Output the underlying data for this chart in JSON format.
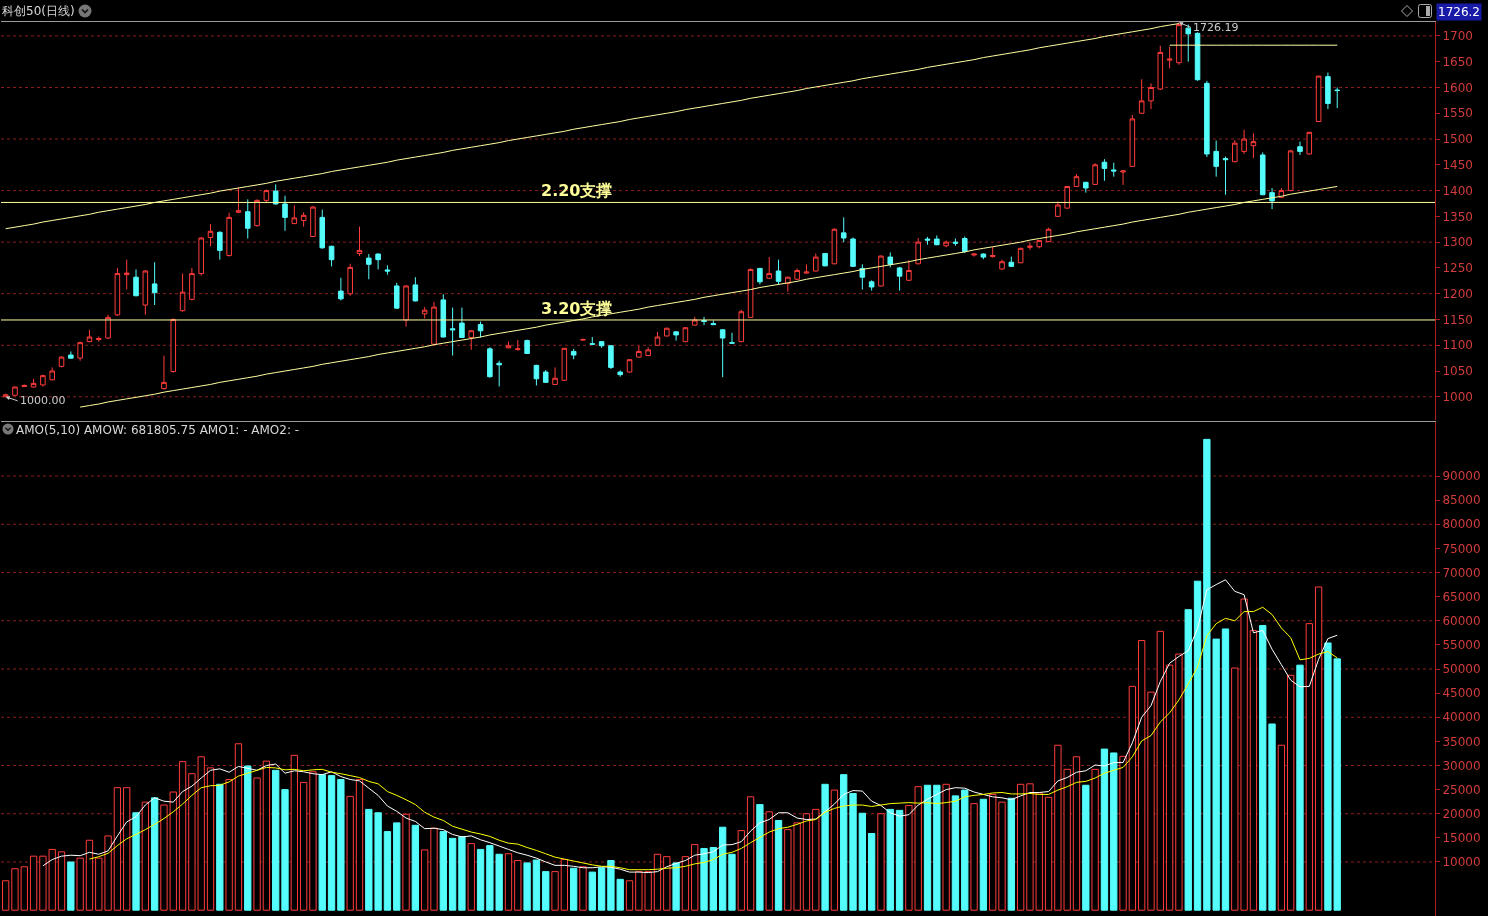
{
  "chart_data": [
    {
      "type": "candlestick",
      "title": "科创50(日线)",
      "categories": [
        null,
        null,
        null,
        null,
        null,
        null,
        null,
        null,
        null,
        null,
        null,
        null,
        null,
        null,
        null,
        null,
        null,
        null,
        null,
        null,
        null,
        null,
        null,
        null,
        null,
        null,
        null,
        null,
        null,
        null,
        null,
        null,
        null,
        null,
        null,
        null,
        null,
        null,
        null,
        null,
        null,
        null,
        null,
        null,
        null,
        null,
        null,
        null,
        null,
        null,
        null,
        null,
        null,
        null,
        null,
        null,
        null,
        null,
        null,
        null,
        null,
        null,
        null,
        null,
        null,
        null,
        null,
        null,
        null,
        null,
        null,
        null,
        null,
        null,
        null,
        null,
        null,
        null,
        null,
        null,
        null,
        null,
        null,
        null,
        null,
        null,
        null,
        null,
        null,
        null,
        null,
        null,
        null,
        null,
        null,
        null,
        null,
        null,
        null,
        null,
        null,
        null,
        null,
        null,
        null,
        null,
        null,
        null,
        null,
        null,
        null,
        null,
        null,
        null,
        null,
        null,
        null,
        null,
        null,
        null,
        null,
        null,
        null,
        null,
        null,
        null,
        null,
        null,
        null,
        null,
        null,
        null,
        null,
        null,
        null,
        null,
        null,
        null,
        null,
        null,
        null,
        null,
        null,
        null
      ],
      "ohlc": [
        [
          1000,
          1006,
          1000,
          1004
        ],
        [
          1003,
          1020,
          1002,
          1019
        ],
        [
          1020,
          1024,
          1019,
          1022
        ],
        [
          1019,
          1035,
          1018,
          1026
        ],
        [
          1023,
          1043,
          1020,
          1041
        ],
        [
          1033,
          1057,
          1032,
          1050
        ],
        [
          1059,
          1079,
          1057,
          1077
        ],
        [
          1081,
          1088,
          1074,
          1075
        ],
        [
          1075,
          1107,
          1070,
          1105
        ],
        [
          1107,
          1130,
          1106,
          1116
        ],
        [
          1111,
          1117,
          1107,
          1113
        ],
        [
          1114,
          1159,
          1112,
          1154
        ],
        [
          1159,
          1250,
          1157,
          1239
        ],
        [
          1237,
          1266,
          1208,
          1240
        ],
        [
          1232,
          1247,
          1195,
          1196
        ],
        [
          1178,
          1246,
          1159,
          1244
        ],
        [
          1219,
          1261,
          1178,
          1202
        ],
        [
          1016,
          1080,
          1014,
          1028
        ],
        [
          1049,
          1152,
          1047,
          1150
        ],
        [
          1167,
          1239,
          1165,
          1203
        ],
        [
          1189,
          1250,
          1187,
          1239
        ],
        [
          1239,
          1310,
          1235,
          1308
        ],
        [
          1309,
          1335,
          1292,
          1321
        ],
        [
          1319,
          1321,
          1266,
          1284
        ],
        [
          1274,
          1357,
          1272,
          1348
        ],
        [
          1358,
          1406,
          1356,
          1361
        ],
        [
          1359,
          1383,
          1307,
          1327
        ],
        [
          1332,
          1383,
          1330,
          1381
        ],
        [
          1381,
          1402,
          1376,
          1400
        ],
        [
          1399,
          1412,
          1373,
          1374
        ],
        [
          1374,
          1390,
          1322,
          1348
        ],
        [
          1336,
          1371,
          1335,
          1347
        ],
        [
          1342,
          1358,
          1330,
          1352
        ],
        [
          1311,
          1370,
          1310,
          1368
        ],
        [
          1348,
          1363,
          1287,
          1289
        ],
        [
          1292,
          1293,
          1253,
          1266
        ],
        [
          1205,
          1231,
          1187,
          1190
        ],
        [
          1200,
          1258,
          1196,
          1251
        ],
        [
          1278,
          1330,
          1273,
          1284
        ],
        [
          1269,
          1277,
          1228,
          1257
        ],
        [
          1277,
          1278,
          1247,
          1266
        ],
        [
          1246,
          1255,
          1237,
          1244
        ],
        [
          1215,
          1221,
          1171,
          1172
        ],
        [
          1149,
          1216,
          1136,
          1215
        ],
        [
          1217,
          1232,
          1185,
          1186
        ],
        [
          1161,
          1174,
          1152,
          1168
        ],
        [
          1102,
          1184,
          1100,
          1174
        ],
        [
          1188,
          1199,
          1115,
          1116
        ],
        [
          1132,
          1173,
          1080,
          1130
        ],
        [
          1143,
          1173,
          1114,
          1115
        ],
        [
          1115,
          1130,
          1091,
          1128
        ],
        [
          1140,
          1146,
          1115,
          1128
        ],
        [
          1093,
          1096,
          1037,
          1039
        ],
        [
          1065,
          1070,
          1020,
          1062
        ],
        [
          1095,
          1107,
          1094,
          1099
        ],
        [
          1092,
          1110,
          1089,
          1093
        ],
        [
          1109,
          1111,
          1083,
          1084
        ],
        [
          1061,
          1062,
          1022,
          1035
        ],
        [
          1048,
          1052,
          1027,
          1028
        ],
        [
          1024,
          1057,
          1023,
          1036
        ],
        [
          1032,
          1095,
          1031,
          1094
        ],
        [
          1088,
          1093,
          1073,
          1081
        ],
        [
          1110,
          1113,
          1109,
          1111
        ],
        [
          1103,
          1116,
          1100,
          1102
        ],
        [
          1107,
          1108,
          1095,
          1099
        ],
        [
          1099,
          1100,
          1054,
          1057
        ],
        [
          1048,
          1051,
          1039,
          1043
        ],
        [
          1048,
          1073,
          1047,
          1072
        ],
        [
          1077,
          1099,
          1076,
          1088
        ],
        [
          1080,
          1096,
          1079,
          1091
        ],
        [
          1100,
          1126,
          1099,
          1116
        ],
        [
          1118,
          1134,
          1117,
          1133
        ],
        [
          1126,
          1127,
          1109,
          1120
        ],
        [
          1107,
          1135,
          1106,
          1134
        ],
        [
          1139,
          1155,
          1138,
          1149
        ],
        [
          1148,
          1155,
          1139,
          1146
        ],
        [
          1142,
          1148,
          1139,
          1140
        ],
        [
          1130,
          1131,
          1038,
          1114
        ],
        [
          1105,
          1124,
          1103,
          1104
        ],
        [
          1107,
          1169,
          1106,
          1165
        ],
        [
          1154,
          1249,
          1153,
          1247
        ],
        [
          1249,
          1250,
          1218,
          1223
        ],
        [
          1230,
          1271,
          1229,
          1239
        ],
        [
          1244,
          1266,
          1217,
          1224
        ],
        [
          1220,
          1233,
          1204,
          1232
        ],
        [
          1228,
          1249,
          1227,
          1245
        ],
        [
          1240,
          1257,
          1239,
          1242
        ],
        [
          1244,
          1278,
          1243,
          1271
        ],
        [
          1278,
          1279,
          1253,
          1254
        ],
        [
          1258,
          1327,
          1257,
          1325
        ],
        [
          1318,
          1348,
          1300,
          1308
        ],
        [
          1306,
          1309,
          1252,
          1253
        ],
        [
          1249,
          1257,
          1208,
          1232
        ],
        [
          1223,
          1226,
          1206,
          1213
        ],
        [
          1215,
          1274,
          1214,
          1273
        ],
        [
          1271,
          1280,
          1251,
          1257
        ],
        [
          1250,
          1252,
          1206,
          1234
        ],
        [
          1226,
          1265,
          1225,
          1245
        ],
        [
          1258,
          1308,
          1257,
          1300
        ],
        [
          1306,
          1310,
          1295,
          1304
        ],
        [
          1306,
          1313,
          1294,
          1295
        ],
        [
          1293,
          1303,
          1290,
          1300
        ],
        [
          1300,
          1307,
          1293,
          1298
        ],
        [
          1307,
          1311,
          1279,
          1282
        ],
        [
          1275,
          1278,
          1272,
          1277
        ],
        [
          1277,
          1278,
          1267,
          1271
        ],
        [
          1272,
          1291,
          1270,
          1274
        ],
        [
          1248,
          1266,
          1246,
          1262
        ],
        [
          1261,
          1272,
          1252,
          1253
        ],
        [
          1260,
          1289,
          1259,
          1288
        ],
        [
          1290,
          1299,
          1285,
          1292
        ],
        [
          1291,
          1304,
          1288,
          1303
        ],
        [
          1301,
          1328,
          1300,
          1325
        ],
        [
          1350,
          1379,
          1349,
          1372
        ],
        [
          1366,
          1409,
          1365,
          1408
        ],
        [
          1408,
          1432,
          1407,
          1427
        ],
        [
          1416,
          1417,
          1396,
          1405
        ],
        [
          1412,
          1453,
          1411,
          1450
        ],
        [
          1455,
          1461,
          1419,
          1443
        ],
        [
          1440,
          1454,
          1427,
          1438
        ],
        [
          1436,
          1440,
          1411,
          1438
        ],
        [
          1447,
          1547,
          1446,
          1539
        ],
        [
          1550,
          1616,
          1549,
          1574
        ],
        [
          1574,
          1608,
          1558,
          1600
        ],
        [
          1597,
          1681,
          1595,
          1668
        ],
        [
          1653,
          1679,
          1637,
          1655
        ],
        [
          1648,
          1726.19,
          1644,
          1722
        ],
        [
          1715,
          1722,
          1650,
          1704
        ],
        [
          1705,
          1707,
          1613,
          1615
        ],
        [
          1608,
          1613,
          1465,
          1471
        ],
        [
          1476,
          1497,
          1427,
          1447
        ],
        [
          1462,
          1466,
          1392,
          1460
        ],
        [
          1456,
          1498,
          1455,
          1492
        ],
        [
          1476,
          1518,
          1471,
          1500
        ],
        [
          1487,
          1511,
          1463,
          1495
        ],
        [
          1469,
          1474,
          1391,
          1392
        ],
        [
          1396,
          1405,
          1364,
          1380
        ],
        [
          1387,
          1405,
          1386,
          1400
        ],
        [
          1400,
          1479,
          1399,
          1477
        ],
        [
          1485,
          1495,
          1469,
          1476
        ],
        [
          1471,
          1514,
          1470,
          1513
        ],
        [
          1534,
          1623,
          1533,
          1622
        ],
        [
          1621,
          1629,
          1558,
          1569
        ],
        [
          1595,
          1600,
          1560,
          1594
        ]
      ],
      "series": [
        {
          "type": "line",
          "color": "#ffffa0",
          "values": [
            1326,
            1329,
            1332,
            1335,
            1339,
            1342,
            1345,
            1348,
            1351,
            1354,
            1358,
            1361,
            1364,
            1367,
            1370,
            1373,
            1377,
            1380,
            1383,
            1386,
            1389,
            1392,
            1395,
            1399,
            1402,
            1405,
            1408,
            1411,
            1414,
            1418,
            1421,
            1424,
            1427,
            1430,
            1433,
            1437,
            1440,
            1443,
            1446,
            1449,
            1452,
            1455,
            1459,
            1462,
            1465,
            1468,
            1471,
            1474,
            1478,
            1481,
            1484,
            1487,
            1490,
            1493,
            1497,
            1500,
            1503,
            1506,
            1509,
            1512,
            1515,
            1519,
            1522,
            1525,
            1528,
            1531,
            1534,
            1538,
            1541,
            1544,
            1547,
            1550,
            1553,
            1557,
            1560,
            1563,
            1566,
            1569,
            1572,
            1575,
            1579,
            1582,
            1585,
            1588,
            1591,
            1594,
            1598,
            1601,
            1604,
            1607,
            1610,
            1613,
            1617,
            1620,
            1623,
            1626,
            1629,
            1632,
            1635,
            1639,
            1642,
            1645,
            1648,
            1651,
            1654,
            1658,
            1661,
            1664,
            1667,
            1670,
            1673,
            1677,
            1680,
            1683,
            1686,
            1689,
            1692,
            1695,
            1699,
            1702,
            1705,
            1708,
            1711,
            1714,
            1718,
            1721,
            1724,
            null,
            null,
            null,
            null,
            null,
            null,
            null,
            null,
            null,
            null,
            null,
            null,
            null,
            null,
            null,
            null,
            null
          ]
        },
        {
          "type": "line",
          "color": "#ffffa0",
          "values": [
            null,
            null,
            null,
            null,
            null,
            null,
            null,
            null,
            980,
            983,
            986,
            990,
            993,
            996,
            999,
            1002,
            1005,
            1009,
            1012,
            1015,
            1018,
            1021,
            1024,
            1028,
            1031,
            1034,
            1037,
            1040,
            1044,
            1047,
            1050,
            1053,
            1056,
            1059,
            1063,
            1066,
            1069,
            1072,
            1075,
            1078,
            1082,
            1085,
            1088,
            1091,
            1094,
            1097,
            1101,
            1104,
            1107,
            1110,
            1113,
            1116,
            1120,
            1123,
            1126,
            1129,
            1132,
            1135,
            1139,
            1142,
            1145,
            1148,
            1151,
            1155,
            1158,
            1161,
            1164,
            1167,
            1170,
            1174,
            1177,
            1180,
            1183,
            1186,
            1189,
            1193,
            1196,
            1199,
            1202,
            1205,
            1208,
            1212,
            1215,
            1218,
            1221,
            1224,
            1228,
            1231,
            1234,
            1237,
            1240,
            1243,
            1247,
            1250,
            1253,
            1256,
            1259,
            1262,
            1266,
            1269,
            1272,
            1275,
            1278,
            1281,
            1285,
            1288,
            1291,
            1294,
            1297,
            1300,
            1304,
            1307,
            1310,
            1313,
            1316,
            1320,
            1323,
            1326,
            1329,
            1332,
            1335,
            1339,
            1342,
            1345,
            1348,
            1351,
            1354,
            1358,
            1361,
            1364,
            1367,
            1370,
            1373,
            1377,
            1380,
            1383,
            1386,
            1389,
            1393,
            1396,
            1399,
            1402,
            1405,
            1408
          ]
        },
        {
          "type": "line",
          "color": "#ffffa0",
          "values": [
            null,
            null,
            null,
            null,
            null,
            null,
            null,
            null,
            null,
            null,
            null,
            null,
            null,
            null,
            null,
            null,
            null,
            null,
            null,
            null,
            null,
            null,
            null,
            null,
            null,
            null,
            null,
            null,
            null,
            null,
            null,
            null,
            null,
            null,
            null,
            null,
            null,
            null,
            null,
            null,
            null,
            null,
            null,
            null,
            null,
            null,
            null,
            null,
            null,
            null,
            null,
            null,
            null,
            null,
            null,
            null,
            null,
            null,
            null,
            null,
            null,
            null,
            null,
            null,
            null,
            null,
            null,
            null,
            null,
            null,
            null,
            null,
            null,
            null,
            null,
            null,
            null,
            null,
            null,
            null,
            null,
            null,
            null,
            null,
            null,
            null,
            null,
            null,
            null,
            null,
            null,
            null,
            null,
            null,
            null,
            null,
            null,
            null,
            null,
            null,
            null,
            null,
            null,
            null,
            null,
            null,
            null,
            null,
            null,
            null,
            null,
            null,
            null,
            null,
            null,
            null,
            null,
            null,
            null,
            null,
            null,
            null,
            null,
            null,
            null,
            1682,
            1682,
            1682,
            1682,
            1682,
            1682,
            1682,
            1682,
            1682,
            1682,
            1682,
            1682,
            1682,
            1682,
            1682,
            1682,
            1682,
            1682,
            1682
          ]
        }
      ],
      "ref_lines": [
        {
          "axis": "y",
          "value": 1377,
          "label": "2.20支撑",
          "color": "#ffff99"
        },
        {
          "axis": "y",
          "value": 1149,
          "label": "3.20支撑",
          "color": "#ffff99"
        }
      ],
      "annotations": [
        "1726.19",
        "1000.00",
        "1726.2"
      ],
      "ylim": [
        955,
        1727
      ],
      "yticks": [
        1000,
        1050,
        1100,
        1150,
        1200,
        1250,
        1300,
        1350,
        1400,
        1450,
        1500,
        1550,
        1600,
        1650,
        1700
      ],
      "grid": true,
      "tick_labels": "y"
    },
    {
      "type": "bar",
      "title": "AMO(5,10) AMOW: 681805.75 AMO1: - AMO2: -",
      "categories": [
        null,
        null,
        null,
        null,
        null,
        null,
        null,
        null,
        null,
        null,
        null,
        null,
        null,
        null,
        null,
        null,
        null,
        null,
        null,
        null,
        null,
        null,
        null,
        null,
        null,
        null,
        null,
        null,
        null,
        null,
        null,
        null,
        null,
        null,
        null,
        null,
        null,
        null,
        null,
        null,
        null,
        null,
        null,
        null,
        null,
        null,
        null,
        null,
        null,
        null,
        null,
        null,
        null,
        null,
        null,
        null,
        null,
        null,
        null,
        null,
        null,
        null,
        null,
        null,
        null,
        null,
        null,
        null,
        null,
        null,
        null,
        null,
        null,
        null,
        null,
        null,
        null,
        null,
        null,
        null,
        null,
        null,
        null,
        null,
        null,
        null,
        null,
        null,
        null,
        null,
        null,
        null,
        null,
        null,
        null,
        null,
        null,
        null,
        null,
        null,
        null,
        null,
        null,
        null,
        null,
        null,
        null,
        null,
        null,
        null,
        null,
        null,
        null,
        null,
        null,
        null,
        null,
        null,
        null,
        null,
        null,
        null,
        null,
        null,
        null,
        null,
        null,
        null,
        null,
        null,
        null,
        null,
        null,
        null,
        null,
        null,
        null,
        null,
        null,
        null,
        null,
        null,
        null,
        null
      ],
      "series": [
        {
          "colors": [
            "#ff3c3c",
            "#ff3c3c",
            "#ff3c3c",
            "#ff3c3c",
            "#ff3c3c",
            "#ff3c3c",
            "#ff3c3c",
            "#54fcfc",
            "#ff3c3c",
            "#ff3c3c",
            "#ff3c3c",
            "#ff3c3c",
            "#ff3c3c",
            "#ff3c3c",
            "#54fcfc",
            "#ff3c3c",
            "#54fcfc",
            "#ff3c3c",
            "#ff3c3c",
            "#ff3c3c",
            "#ff3c3c",
            "#ff3c3c",
            "#ff3c3c",
            "#54fcfc",
            "#ff3c3c",
            "#ff3c3c",
            "#54fcfc",
            "#ff3c3c",
            "#ff3c3c",
            "#54fcfc",
            "#54fcfc",
            "#ff3c3c",
            "#ff3c3c",
            "#ff3c3c",
            "#54fcfc",
            "#54fcfc",
            "#54fcfc",
            "#ff3c3c",
            "#ff3c3c",
            "#54fcfc",
            "#54fcfc",
            "#54fcfc",
            "#54fcfc",
            "#ff3c3c",
            "#54fcfc",
            "#ff3c3c",
            "#ff3c3c",
            "#54fcfc",
            "#54fcfc",
            "#54fcfc",
            "#ff3c3c",
            "#54fcfc",
            "#54fcfc",
            "#54fcfc",
            "#ff3c3c",
            "#ff3c3c",
            "#54fcfc",
            "#54fcfc",
            "#54fcfc",
            "#ff3c3c",
            "#ff3c3c",
            "#54fcfc",
            "#ff3c3c",
            "#54fcfc",
            "#54fcfc",
            "#54fcfc",
            "#54fcfc",
            "#ff3c3c",
            "#ff3c3c",
            "#ff3c3c",
            "#ff3c3c",
            "#ff3c3c",
            "#54fcfc",
            "#ff3c3c",
            "#ff3c3c",
            "#54fcfc",
            "#54fcfc",
            "#54fcfc",
            "#54fcfc",
            "#ff3c3c",
            "#ff3c3c",
            "#54fcfc",
            "#ff3c3c",
            "#54fcfc",
            "#ff3c3c",
            "#ff3c3c",
            "#ff3c3c",
            "#ff3c3c",
            "#54fcfc",
            "#ff3c3c",
            "#54fcfc",
            "#54fcfc",
            "#54fcfc",
            "#54fcfc",
            "#ff3c3c",
            "#54fcfc",
            "#54fcfc",
            "#ff3c3c",
            "#ff3c3c",
            "#54fcfc",
            "#54fcfc",
            "#ff3c3c",
            "#54fcfc",
            "#54fcfc",
            "#ff3c3c",
            "#54fcfc",
            "#ff3c3c",
            "#ff3c3c",
            "#54fcfc",
            "#ff3c3c",
            "#ff3c3c",
            "#ff3c3c",
            "#ff3c3c",
            "#ff3c3c",
            "#ff3c3c",
            "#ff3c3c",
            "#54fcfc",
            "#ff3c3c",
            "#54fcfc",
            "#54fcfc",
            "#ff3c3c",
            "#ff3c3c",
            "#ff3c3c",
            "#ff3c3c",
            "#ff3c3c",
            "#ff3c3c",
            "#ff3c3c",
            "#54fcfc",
            "#54fcfc",
            "#54fcfc",
            "#54fcfc",
            "#54fcfc",
            "#ff3c3c",
            "#ff3c3c",
            "#ff3c3c",
            "#54fcfc",
            "#54fcfc",
            "#ff3c3c",
            "#ff3c3c",
            "#54fcfc",
            "#ff3c3c",
            "#ff3c3c",
            "#54fcfc",
            "#54fcfc"
          ],
          "values": [
            6100,
            8600,
            9000,
            11200,
            11200,
            12600,
            12100,
            10000,
            10800,
            14500,
            10800,
            15400,
            25400,
            25400,
            20200,
            22400,
            23300,
            21800,
            24500,
            30800,
            28300,
            31800,
            29500,
            26100,
            27100,
            34500,
            29900,
            27400,
            30900,
            29000,
            25000,
            32100,
            26500,
            28700,
            28100,
            27900,
            27100,
            23600,
            27100,
            20900,
            20200,
            16300,
            18100,
            19900,
            17600,
            12500,
            17000,
            16300,
            14900,
            15200,
            13800,
            12600,
            13400,
            11600,
            11700,
            10300,
            9800,
            10400,
            8000,
            8000,
            10500,
            8700,
            9000,
            7900,
            8800,
            10300,
            6400,
            6100,
            8000,
            8000,
            11600,
            11100,
            9800,
            11100,
            13600,
            12800,
            13000,
            17200,
            11600,
            16500,
            23500,
            21900,
            20400,
            18600,
            16700,
            18100,
            20000,
            20900,
            26100,
            24900,
            28100,
            24200,
            20100,
            15900,
            20000,
            20900,
            20700,
            21700,
            25600,
            25900,
            25900,
            26100,
            23700,
            24900,
            22100,
            23000,
            24000,
            22400,
            23200,
            26100,
            26200,
            24300,
            23400,
            34200,
            29200,
            31800,
            25900,
            29200,
            33400,
            32600,
            31900,
            46400,
            55900,
            45200,
            57800,
            50800,
            53100,
            62300,
            68200,
            97600,
            56200,
            58300,
            50200,
            64500,
            58000,
            59000,
            38600,
            34200,
            48700,
            50800,
            59400,
            67000,
            55400,
            52100
          ]
        },
        {
          "type": "line",
          "color": "#ffffff",
          "values": [
            null,
            null,
            null,
            null,
            9200,
            10500,
            11200,
            11400,
            11300,
            12000,
            11600,
            12300,
            15400,
            18300,
            19400,
            21800,
            23300,
            22600,
            22400,
            24600,
            25700,
            27400,
            29000,
            29300,
            28600,
            29800,
            29400,
            29000,
            30000,
            30300,
            28400,
            28900,
            28700,
            28300,
            28100,
            28700,
            27700,
            27100,
            26800,
            25300,
            23800,
            21600,
            20500,
            19100,
            18400,
            16900,
            17000,
            16700,
            15700,
            15200,
            15400,
            14600,
            14000,
            13300,
            12600,
            11900,
            11400,
            10800,
            10000,
            9300,
            9300,
            9100,
            8800,
            8800,
            9000,
            8900,
            8500,
            7900,
            7900,
            7800,
            8000,
            9000,
            9700,
            10300,
            11400,
            11700,
            12100,
            13500,
            13600,
            14200,
            16400,
            18100,
            18800,
            20200,
            20200,
            19100,
            18800,
            18900,
            20400,
            22000,
            24000,
            24800,
            24700,
            22600,
            21700,
            20200,
            19500,
            19800,
            21800,
            23000,
            24000,
            25000,
            25400,
            25300,
            24500,
            24000,
            23500,
            23300,
            22900,
            23700,
            24400,
            24400,
            24600,
            26800,
            27500,
            28600,
            28900,
            30100,
            29900,
            30600,
            30600,
            34700,
            40000,
            42400,
            47400,
            51200,
            52600,
            53800,
            58400,
            66400,
            67500,
            68500,
            66100,
            65400,
            57500,
            58000,
            54100,
            50900,
            47700,
            46300,
            46400,
            52000,
            56300,
            57000
          ]
        },
        {
          "type": "line",
          "color": "#ffff00",
          "values": [
            null,
            null,
            null,
            null,
            null,
            null,
            null,
            null,
            null,
            10600,
            11100,
            11800,
            13400,
            14800,
            15700,
            16700,
            17800,
            19000,
            20400,
            22000,
            23800,
            25400,
            25800,
            25900,
            26600,
            27800,
            28400,
            29000,
            29600,
            29500,
            29100,
            29200,
            28900,
            29100,
            29200,
            28600,
            28300,
            27900,
            27500,
            26700,
            26200,
            24600,
            23800,
            22900,
            21900,
            20300,
            19300,
            18600,
            17400,
            16800,
            16200,
            15800,
            15300,
            14500,
            13900,
            13700,
            13000,
            12400,
            11700,
            11000,
            10600,
            10200,
            9800,
            9400,
            9100,
            9100,
            8800,
            8400,
            8400,
            8400,
            8500,
            8700,
            8800,
            9100,
            9600,
            9900,
            10500,
            11600,
            12000,
            12800,
            14000,
            15100,
            16200,
            16900,
            17200,
            17800,
            18500,
            18800,
            20300,
            21100,
            21600,
            21800,
            21800,
            21500,
            21800,
            22100,
            22200,
            22300,
            22200,
            22300,
            22100,
            22300,
            22600,
            23500,
            23800,
            24000,
            24300,
            24400,
            24100,
            24100,
            24200,
            24000,
            24000,
            24900,
            25600,
            26500,
            26700,
            27400,
            28400,
            29000,
            29600,
            31800,
            35100,
            36200,
            39000,
            40900,
            43600,
            46900,
            50400,
            56900,
            59400,
            60500,
            60000,
            61900,
            61900,
            62800,
            61300,
            58500,
            56500,
            51900,
            52200,
            53100,
            53600,
            52300
          ]
        }
      ],
      "ylim": [
        -1200,
        101200
      ],
      "yticks": [
        10000,
        15000,
        20000,
        25000,
        30000,
        35000,
        40000,
        45000,
        50000,
        55000,
        60000,
        65000,
        70000,
        75000,
        80000,
        85000,
        90000
      ],
      "grid": true,
      "tick_labels": "y"
    }
  ]
}
